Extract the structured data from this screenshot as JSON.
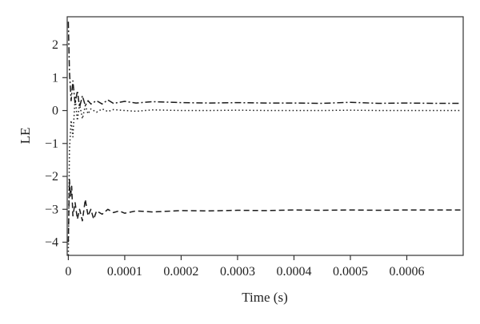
{
  "chart_data": {
    "type": "line",
    "xlabel": "Time (s)",
    "ylabel": "LE",
    "xlim": [
      -2e-06,
      0.0007
    ],
    "ylim": [
      -4.4,
      2.85
    ],
    "xticks": [
      0,
      0.0001,
      0.0002,
      0.0003,
      0.0004,
      0.0005,
      0.0006
    ],
    "xtick_labels": [
      "0",
      "0.0001",
      "0.0002",
      "0.0003",
      "0.0004",
      "0.0005",
      "0.0006"
    ],
    "yticks": [
      -4,
      -3,
      -2,
      -1,
      0,
      1,
      2
    ],
    "ytick_labels": [
      "−4",
      "−3",
      "−2",
      "−1",
      "0",
      "1",
      "2"
    ],
    "grid": false,
    "legend": "none",
    "series": [
      {
        "style": "dash-dot",
        "x": [
          0,
          2e-06,
          5e-06,
          8e-06,
          1.2e-05,
          1.6e-05,
          2e-05,
          2.5e-05,
          3e-05,
          3.5e-05,
          4e-05,
          5e-05,
          6e-05,
          7e-05,
          8e-05,
          0.0001,
          0.00012,
          0.00015,
          0.0002,
          0.00025,
          0.0003,
          0.00035,
          0.0004,
          0.00045,
          0.0005,
          0.00055,
          0.0006,
          0.00065,
          0.000695
        ],
        "y": [
          2.7,
          1.2,
          0.3,
          0.9,
          0.2,
          0.6,
          0.1,
          0.45,
          0.15,
          0.3,
          0.2,
          0.3,
          0.2,
          0.32,
          0.22,
          0.28,
          0.23,
          0.27,
          0.24,
          0.23,
          0.24,
          0.23,
          0.23,
          0.22,
          0.25,
          0.22,
          0.23,
          0.22,
          0.22
        ]
      },
      {
        "style": "dotted",
        "x": [
          0,
          2e-06,
          5e-06,
          8e-06,
          1.2e-05,
          1.6e-05,
          2e-05,
          2.5e-05,
          3e-05,
          3.5e-05,
          4e-05,
          5e-05,
          6e-05,
          7e-05,
          8e-05,
          0.0001,
          0.00012,
          0.00015,
          0.0002,
          0.00025,
          0.0003,
          0.00035,
          0.0004,
          0.00045,
          0.0005,
          0.00055,
          0.0006,
          0.00065,
          0.000695
        ],
        "y": [
          -4.4,
          -1.2,
          -0.3,
          -0.8,
          0.4,
          -0.3,
          0.2,
          -0.25,
          0.15,
          -0.1,
          0.05,
          -0.05,
          0.05,
          -0.03,
          0.03,
          0.0,
          -0.02,
          0.02,
          0.0,
          0.0,
          0.01,
          0.0,
          0.0,
          0.0,
          0.01,
          0.0,
          0.0,
          0.0,
          0.0
        ]
      },
      {
        "style": "dashed",
        "x": [
          0,
          2e-06,
          4e-06,
          6e-06,
          8e-06,
          1.2e-05,
          1.6e-05,
          2e-05,
          2.5e-05,
          3e-05,
          3.5e-05,
          4e-05,
          4.5e-05,
          5e-05,
          6e-05,
          7e-05,
          8e-05,
          9e-05,
          0.0001,
          0.00012,
          0.00015,
          0.0002,
          0.00025,
          0.0003,
          0.00035,
          0.0004,
          0.00045,
          0.0005,
          0.00055,
          0.0006,
          0.00065,
          0.000695
        ],
        "y": [
          -4.0,
          -2.1,
          -2.6,
          -2.3,
          -3.2,
          -2.8,
          -3.3,
          -3.0,
          -3.35,
          -2.7,
          -3.2,
          -3.0,
          -3.3,
          -3.05,
          -3.15,
          -3.0,
          -3.1,
          -3.05,
          -3.12,
          -3.05,
          -3.08,
          -3.04,
          -3.05,
          -3.03,
          -3.04,
          -3.02,
          -3.03,
          -3.02,
          -3.03,
          -3.02,
          -3.02,
          -3.02
        ]
      }
    ]
  }
}
